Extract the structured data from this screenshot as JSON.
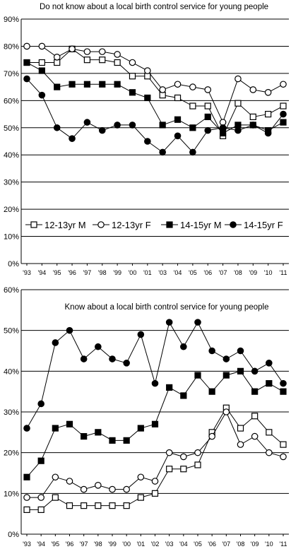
{
  "chart_data": [
    {
      "type": "line",
      "title": "Do not know about a local birth control service for young people",
      "x": [
        "'93",
        "'94",
        "'95",
        "'96",
        "'97",
        "'98",
        "'99",
        "'00",
        "'01",
        "'03",
        "'04",
        "'05",
        "'06",
        "'07",
        "'08",
        "'09",
        "'10",
        "'11"
      ],
      "ylim": [
        0,
        90
      ],
      "yticks": [
        "0%",
        "10%",
        "20%",
        "30%",
        "40%",
        "50%",
        "60%",
        "70%",
        "80%",
        "90%"
      ],
      "legend": "inside-lower",
      "series": [
        {
          "name": "12-13yr M",
          "marker": "open-square",
          "values": [
            74,
            74,
            74,
            79,
            75,
            75,
            74,
            69,
            69,
            62,
            61,
            58,
            58,
            47,
            59,
            54,
            55,
            58
          ]
        },
        {
          "name": "12-13yr F",
          "marker": "open-circle",
          "values": [
            80,
            80,
            76,
            79,
            78,
            78,
            77,
            74,
            71,
            64,
            66,
            65,
            64,
            52,
            68,
            64,
            63,
            66
          ]
        },
        {
          "name": "14-15yr M",
          "marker": "filled-square",
          "values": [
            74,
            71,
            65,
            66,
            66,
            66,
            66,
            63,
            61,
            51,
            53,
            50,
            54,
            48,
            51,
            51,
            49,
            52
          ]
        },
        {
          "name": "14-15yr F",
          "marker": "filled-circle",
          "values": [
            68,
            62,
            50,
            46,
            52,
            49,
            51,
            51,
            45,
            41,
            47,
            41,
            49,
            50,
            49,
            51,
            48,
            55
          ]
        }
      ]
    },
    {
      "type": "line",
      "title": "Know about a local birth control service for young people",
      "x": [
        "'93",
        "'94",
        "'95",
        "'96",
        "'97",
        "'98",
        "'99",
        "'00",
        "'01",
        "'02",
        "'03",
        "'04",
        "'05",
        "'06",
        "'07",
        "'08",
        "'09",
        "'10",
        "'11"
      ],
      "ylim": [
        0,
        60
      ],
      "yticks": [
        "0%",
        "10%",
        "20%",
        "30%",
        "40%",
        "50%",
        "60%"
      ],
      "series": [
        {
          "marker": "open-square",
          "values": [
            6,
            6,
            9,
            7,
            7,
            7,
            7,
            7,
            9,
            10,
            16,
            16,
            17,
            25,
            31,
            26,
            29,
            25,
            22
          ]
        },
        {
          "marker": "open-circle",
          "values": [
            9,
            9,
            14,
            13,
            11,
            12,
            11,
            11,
            14,
            13,
            20,
            19,
            20,
            24,
            30,
            22,
            24,
            20,
            19
          ]
        },
        {
          "marker": "filled-square",
          "values": [
            14,
            18,
            26,
            27,
            24,
            25,
            23,
            23,
            26,
            27,
            36,
            34,
            39,
            35,
            39,
            40,
            35,
            37,
            35
          ]
        },
        {
          "marker": "filled-circle",
          "values": [
            26,
            32,
            47,
            50,
            43,
            46,
            43,
            42,
            49,
            37,
            52,
            46,
            52,
            45,
            43,
            45,
            40,
            42,
            37
          ]
        }
      ]
    }
  ]
}
